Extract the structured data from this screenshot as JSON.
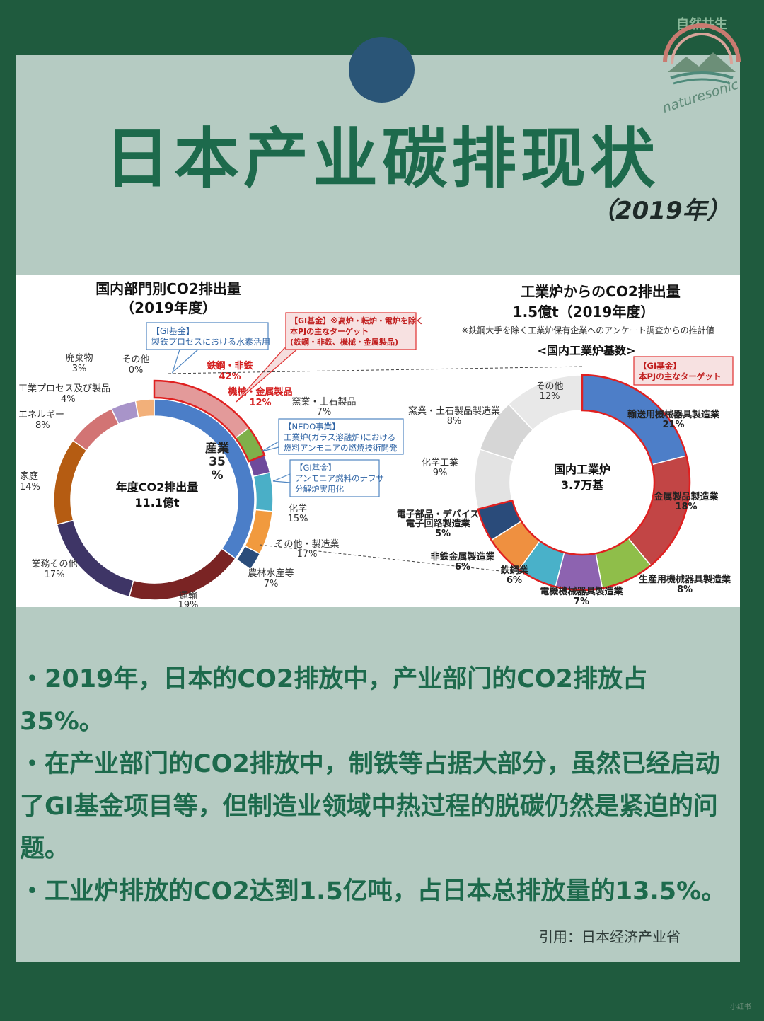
{
  "header": {
    "title": "日本产业碳排现状",
    "year": "（2019年）"
  },
  "logo": {
    "text_top": "自然共生",
    "text_bottom": "naturesonic"
  },
  "colors": {
    "background": "#1f5b3e",
    "card": "#b5cbc2",
    "accent": "#1d6a4c",
    "dot": "#2a5577"
  },
  "chart_data": [
    {
      "type": "pie",
      "title_line1": "国内部門別CO2排出量",
      "title_line2": "（2019年度）",
      "center_line1": "年度CO2排出量",
      "center_line2": "11.1億t",
      "outer_ring": [
        {
          "label": "産業",
          "value": 35,
          "color": "#4b7ec8"
        },
        {
          "label": "運輸",
          "value": 19,
          "color": "#7a2424"
        },
        {
          "label": "業務その他",
          "value": 17,
          "color": "#3e3566"
        },
        {
          "label": "家庭",
          "value": 14,
          "color": "#b55c12"
        },
        {
          "label": "エネルギー",
          "value": 8,
          "color": "#d27474"
        },
        {
          "label": "工業プロセス及び製品",
          "value": 4,
          "color": "#a894c9"
        },
        {
          "label": "廃棄物",
          "value": 3,
          "color": "#f2b07a"
        },
        {
          "label": "その他",
          "value": 0,
          "color": "#cccccc"
        }
      ],
      "industry_breakdown": [
        {
          "label": "鉄鋼・非鉄",
          "value": 42,
          "color": "#e39a9a"
        },
        {
          "label": "機械・金属製品",
          "value": 12,
          "color": "#7fb04a"
        },
        {
          "label": "窯業・土石製品",
          "value": 7,
          "color": "#6f4a9c"
        },
        {
          "label": "化学",
          "value": 15,
          "color": "#4aafc7"
        },
        {
          "label": "その他・製造業",
          "value": 17,
          "color": "#f19a3e"
        },
        {
          "label": "農林水産等",
          "value": 7,
          "color": "#2a4c7a"
        }
      ],
      "labels": {
        "haikibutsu": "廃棄物",
        "haikibutsu_v": "3%",
        "sonota": "その他",
        "sonota_v": "0%",
        "kogyo": "工業プロセス及び製品",
        "kogyo_v": "4%",
        "energy": "エネルギー",
        "energy_v": "8%",
        "katei": "家庭",
        "katei_v": "14%",
        "gyomu": "業務その他",
        "gyomu_v": "17%",
        "unyu": "運輸",
        "unyu_v": "19%",
        "sangyo1": "産業",
        "sangyo2": "35",
        "sangyo3": "%",
        "tekko": "鉄鋼・非鉄",
        "tekko_v": "42%",
        "kikai": "機械・金属製品",
        "kikai_v": "12%",
        "yogyo": "窯業・土石製品",
        "yogyo_v": "7%",
        "kagaku": "化学",
        "kagaku_v": "15%",
        "sonota_seizo": "その他・製造業",
        "sonota_seizo_v": "17%",
        "norin": "農林水産等",
        "norin_v": "7%"
      },
      "callouts": {
        "gi_left_1": "【GI基金】",
        "gi_left_2": "製鉄プロセスにおける水素活用",
        "gi_red_1": "【GI基金】※高炉・転炉・電炉を除く",
        "gi_red_2": "本PJの主なターゲット",
        "gi_red_3": "(鉄鋼・非鉄、機械・金属製品)",
        "nedo_1": "【NEDO事業】",
        "nedo_2": "工業炉(ガラス溶融炉)における",
        "nedo_3": "燃料アンモニアの燃焼技術開発",
        "gi_nafsa_1": "【GI基金】",
        "gi_nafsa_2": "アンモニア燃料のナフサ",
        "gi_nafsa_3": "分解炉実用化"
      }
    },
    {
      "type": "pie",
      "title_line1": "工業炉からのCO2排出量",
      "title_line2": "1.5億t（2019年度）",
      "note": "※鉄鋼大手を除く工業炉保有企業へのアンケート調査からの推計値",
      "subtitle": "<国内工業炉基数>",
      "center_line1": "国内工業炉",
      "center_line2": "3.7万基",
      "callout_1": "【GI基金】",
      "callout_2": "本PJの主なターゲット",
      "segments": [
        {
          "label": "輸送用機械器具製造業",
          "value": 21,
          "color": "#4d7ec8"
        },
        {
          "label": "金属製品製造業",
          "value": 18,
          "color": "#c24545"
        },
        {
          "label": "生産用機械器具製造業",
          "value": 8,
          "color": "#8fbe4a"
        },
        {
          "label": "電機機械器具製造業",
          "value": 7,
          "color": "#8d63b0"
        },
        {
          "label": "鉄鋼業",
          "value": 6,
          "color": "#49b1c9"
        },
        {
          "label": "非鉄金属製造業",
          "value": 6,
          "color": "#ef9040"
        },
        {
          "label": "電子部品・デバイス電子回路製造業",
          "value": 5,
          "color": "#2a4b7a"
        },
        {
          "label": "化学工業",
          "value": 9,
          "color": "#e3e3e3"
        },
        {
          "label": "窯業・土石製品製造業",
          "value": 8,
          "color": "#d6d6d6"
        },
        {
          "label": "その他",
          "value": 12,
          "color": "#e8e8e8"
        }
      ],
      "labels": {
        "yuso": "輸送用機械器具製造業",
        "yuso_v": "21%",
        "kinzoku": "金属製品製造業",
        "kinzoku_v": "18%",
        "seisan": "生産用機械器具製造業",
        "seisan_v": "8%",
        "denki": "電機機械器具製造業",
        "denki_v": "7%",
        "tekko": "鉄鋼業",
        "tekko_v": "6%",
        "hitetsu": "非鉄金属製造業",
        "hitetsu_v": "6%",
        "denshi1": "電子部品・デバイス",
        "denshi2": "電子回路製造業",
        "denshi_v": "5%",
        "kagaku": "化学工業",
        "kagaku_v": "9%",
        "yogyo": "窯業・土石製品製造業",
        "yogyo_v": "8%",
        "sonota": "その他",
        "sonota_v": "12%"
      }
    }
  ],
  "bullets": [
    "・2019年，日本的CO2排放中，产业部门的CO2排放占35%。",
    "・在产业部门的CO2排放中，制铁等占据大部分，虽然已经启动了GI基金项目等，但制造业领域中热过程的脱碳仍然是紧迫的问题。",
    "・工业炉排放的CO2达到1.5亿吨，占日本总排放量的13.5%。"
  ],
  "source": "引用：日本经济产业省",
  "watermark": "小红书"
}
